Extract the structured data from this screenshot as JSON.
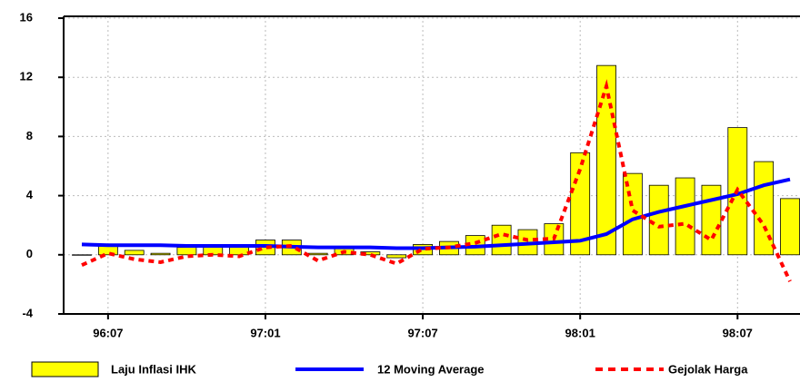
{
  "chart_data": {
    "type": "bar-line",
    "categories": [
      null,
      "96:07",
      null,
      null,
      null,
      null,
      null,
      "97:01",
      null,
      null,
      null,
      null,
      null,
      "97:07",
      null,
      null,
      null,
      null,
      null,
      "98:01",
      null,
      null,
      null,
      null,
      null,
      "98:07",
      null,
      null
    ],
    "series": [
      {
        "name": "Laju Inflasi IHK",
        "type": "bar",
        "color": "#ffff00",
        "values": [
          0,
          0.6,
          0.3,
          0.1,
          0.5,
          0.5,
          0.5,
          1.0,
          1.0,
          0.1,
          0.5,
          0.2,
          -0.2,
          0.7,
          0.9,
          1.3,
          2.0,
          1.7,
          2.1,
          6.9,
          12.8,
          5.5,
          4.7,
          5.2,
          4.7,
          8.6,
          6.3,
          3.8
        ]
      },
      {
        "name": "12 Moving Average",
        "type": "line",
        "color": "#0000ff",
        "values": [
          0.7,
          0.65,
          0.65,
          0.65,
          0.6,
          0.6,
          0.6,
          0.6,
          0.55,
          0.5,
          0.5,
          0.5,
          0.45,
          0.45,
          0.5,
          0.55,
          0.65,
          0.75,
          0.85,
          0.95,
          1.4,
          2.4,
          2.9,
          3.3,
          3.7,
          4.1,
          4.7,
          5.1
        ]
      },
      {
        "name": "Gejolak Harga",
        "type": "dashed-line",
        "color": "#ff0000",
        "values": [
          -0.7,
          0.1,
          -0.3,
          -0.5,
          -0.1,
          0.0,
          -0.1,
          0.5,
          0.6,
          -0.4,
          0.2,
          0.0,
          -0.6,
          0.4,
          0.5,
          0.8,
          1.4,
          1.0,
          1.1,
          5.8,
          11.4,
          3.0,
          1.9,
          2.1,
          1.0,
          4.4,
          2.0,
          -1.8
        ]
      }
    ],
    "ylim": [
      -4,
      16
    ],
    "yticks": [
      -4,
      0,
      4,
      8,
      12,
      16
    ],
    "grid": true,
    "legend": "bottom"
  }
}
